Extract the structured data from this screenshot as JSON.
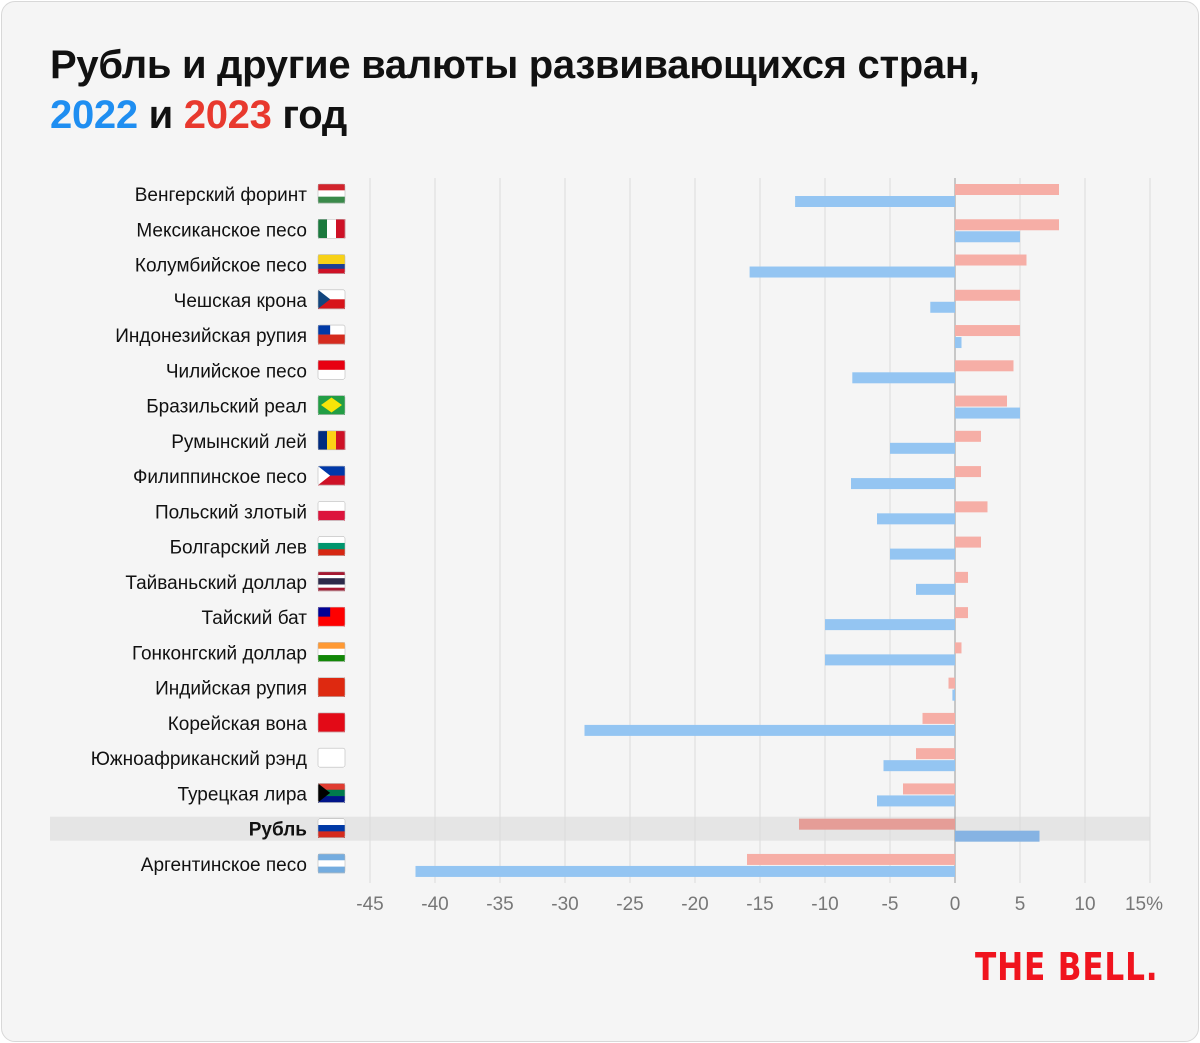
{
  "title": {
    "line1": "Рубль и другие валюты развивающихся стран,",
    "year1": "2022",
    "and": "и",
    "year2": "2023",
    "suffix": "год"
  },
  "logo": "THE BELL.",
  "colors": {
    "s2022": "#94c5f2",
    "s2023": "#f6aea6",
    "s2022_hl": "#86b3e3",
    "s2023_hl": "#e59d97",
    "highlight": "#e5e5e5",
    "accent2022": "#1f8ef1",
    "accent2023": "#e8392e"
  },
  "chart_data": {
    "type": "bar",
    "orientation": "horizontal",
    "title": "Рубль и другие валюты развивающихся стран, 2022 и 2023 год",
    "xlabel": "",
    "ylabel": "",
    "xlim": [
      -45,
      15
    ],
    "x_ticks": [
      "-45",
      "-40",
      "-35",
      "-30",
      "-25",
      "-20",
      "-15",
      "-10",
      "-5",
      "0",
      "5",
      "10",
      "15%"
    ],
    "x_tick_values": [
      -45,
      -40,
      -35,
      -30,
      -25,
      -20,
      -15,
      -10,
      -5,
      0,
      5,
      10,
      15
    ],
    "grid": true,
    "highlight": "Рубль",
    "categories": [
      "Венгерский форинт",
      "Мексиканское песо",
      "Колумбийское песо",
      "Чешская крона",
      "Индонезийская рупия",
      "Чилийское песо",
      "Бразильский реал",
      "Румынский лей",
      "Филиппинское песо",
      "Польский злотый",
      "Болгарский лев",
      "Тайваньский доллар",
      "Тайский бат",
      "Гонконгский доллар",
      "Индийская рупия",
      "Корейская вона",
      "Южноафриканский рэнд",
      "Турецкая лира",
      "Рубль",
      "Аргентинское песо"
    ],
    "series": [
      {
        "name": "2023",
        "values": [
          8,
          8,
          5.5,
          5,
          5,
          4.5,
          4,
          2,
          2,
          2.5,
          2,
          1,
          1,
          0.5,
          -0.5,
          -2.5,
          -3,
          -4,
          -12,
          -16
        ]
      },
      {
        "name": "2022",
        "values": [
          -12.3,
          5,
          -15.8,
          -1.9,
          0.5,
          -7.9,
          5,
          -5,
          -8,
          -6,
          -5,
          -3,
          -10,
          -10,
          -0.2,
          -28.5,
          -5.5,
          -6,
          6.5,
          -41.5
        ]
      }
    ]
  },
  "flags": [
    {
      "icon": "hungary-flag-icon",
      "dir": "h",
      "stripes": [
        "#d2232c",
        "#ffffff",
        "#3a8a4a"
      ]
    },
    {
      "icon": "mexico-flag-icon",
      "dir": "v",
      "stripes": [
        "#1b7a3e",
        "#ffffff",
        "#ce1126"
      ]
    },
    {
      "icon": "colombia-flag-icon",
      "dir": "h",
      "stripes": [
        "#f7d117",
        "#f7d117",
        "#1c3f94",
        "#ce1126"
      ]
    },
    {
      "icon": "czech-flag-icon",
      "dir": "h",
      "stripes": [
        "#ffffff",
        "#d7141a"
      ],
      "tri": "#11457e"
    },
    {
      "icon": "chile-flag-icon",
      "dir": "h",
      "stripes": [
        "#ffffff",
        "#d52b1e"
      ],
      "canton": "#0039a6"
    },
    {
      "icon": "indonesia-flag-icon",
      "dir": "h",
      "stripes": [
        "#e70011",
        "#ffffff"
      ]
    },
    {
      "icon": "brazil-flag-icon",
      "dir": "h",
      "stripes": [
        "#229e45"
      ],
      "diamond": "#f8e509"
    },
    {
      "icon": "romania-flag-icon",
      "dir": "v",
      "stripes": [
        "#002b7f",
        "#fcd116",
        "#ce1126"
      ]
    },
    {
      "icon": "philippines-flag-icon",
      "dir": "h",
      "stripes": [
        "#0038a8",
        "#ce1126"
      ],
      "tri": "#ffffff"
    },
    {
      "icon": "poland-flag-icon",
      "dir": "h",
      "stripes": [
        "#ffffff",
        "#dc143c"
      ]
    },
    {
      "icon": "bulgaria-flag-icon",
      "dir": "h",
      "stripes": [
        "#ffffff",
        "#00966e",
        "#d62612"
      ]
    },
    {
      "icon": "thailand-flag-icon",
      "dir": "h",
      "stripes": [
        "#a51931",
        "#ffffff",
        "#2d2a4a",
        "#2d2a4a",
        "#ffffff",
        "#a51931"
      ]
    },
    {
      "icon": "taiwan-flag-icon",
      "dir": "h",
      "stripes": [
        "#fe0000"
      ],
      "canton": "#000095"
    },
    {
      "icon": "india-flag-icon",
      "dir": "h",
      "stripes": [
        "#ff9933",
        "#ffffff",
        "#138808"
      ]
    },
    {
      "icon": "hong-kong-flag-icon",
      "dir": "h",
      "stripes": [
        "#de2910"
      ]
    },
    {
      "icon": "turkey-flag-icon",
      "dir": "h",
      "stripes": [
        "#e30a17"
      ]
    },
    {
      "icon": "south-korea-flag-icon",
      "dir": "h",
      "stripes": [
        "#ffffff"
      ]
    },
    {
      "icon": "south-africa-flag-icon",
      "dir": "h",
      "stripes": [
        "#e03c31",
        "#007a4d",
        "#001489"
      ],
      "tri": "#000000"
    },
    {
      "icon": "russia-flag-icon",
      "dir": "h",
      "stripes": [
        "#ffffff",
        "#0039a6",
        "#d52b1e"
      ]
    },
    {
      "icon": "argentina-flag-icon",
      "dir": "h",
      "stripes": [
        "#74acdf",
        "#ffffff",
        "#74acdf"
      ]
    }
  ]
}
